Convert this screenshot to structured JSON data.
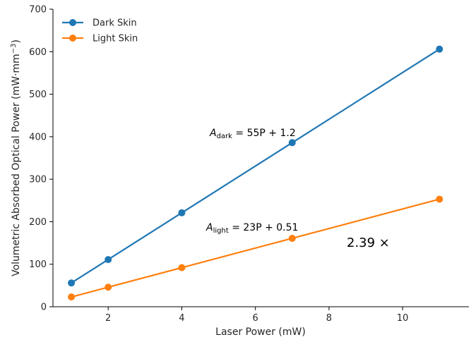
{
  "chart_data": {
    "type": "line",
    "xlabel": "Laser Power (mW)",
    "ylabel": "Volumetric Absorbed Optical Power (mW·mm",
    "ylabel_sup": "−3",
    "ylabel_close": ")",
    "xlim": [
      0.5,
      11.8
    ],
    "ylim": [
      0,
      700
    ],
    "xticks": [
      2,
      4,
      6,
      8,
      10
    ],
    "yticks": [
      0,
      100,
      200,
      300,
      400,
      500,
      600,
      700
    ],
    "grid": false,
    "legend_position": "top-left",
    "x": [
      1,
      2,
      4,
      7,
      11
    ],
    "series": [
      {
        "name": "Dark Skin",
        "color": "#1f77b4",
        "values": [
          56,
          111,
          221,
          386,
          606
        ]
      },
      {
        "name": "Light Skin",
        "color": "#ff7f0e",
        "values": [
          23,
          46,
          92,
          161,
          253
        ]
      }
    ],
    "annotations": {
      "dark_eq_main": "A",
      "dark_eq_sub": "dark",
      "dark_eq_rest": " = 55P + 1.2",
      "light_eq_main": "A",
      "light_eq_sub": "light",
      "light_eq_rest": " = 23P + 0.51",
      "ratio": "2.39 ×"
    }
  }
}
